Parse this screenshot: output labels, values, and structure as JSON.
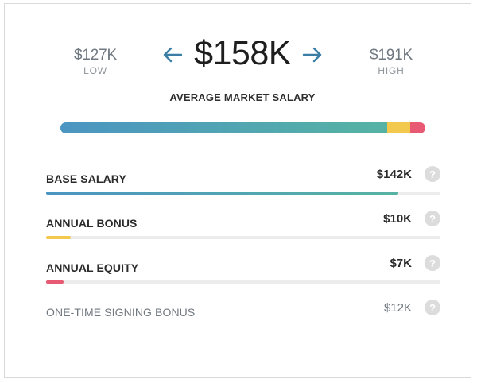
{
  "salary": {
    "low": {
      "amount": "$127K",
      "label": "LOW"
    },
    "high": {
      "amount": "$191K",
      "label": "HIGH"
    },
    "average": {
      "amount": "$158K",
      "label": "AVERAGE MARKET SALARY"
    }
  },
  "icons": {
    "prev": "arrow-left-icon",
    "next": "arrow-right-icon",
    "help": "question-mark-icon"
  },
  "colors": {
    "accent": "#3a7ea6",
    "base_start": "#4b95c2",
    "base_end": "#56b3a3",
    "bonus": "#f2c94c",
    "equity": "#e85a73"
  },
  "total_bar": {
    "base_fraction": 0.896,
    "bonus_fraction": 0.063,
    "equity_fraction": 0.041
  },
  "components": [
    {
      "name": "BASE SALARY",
      "value": "$142K",
      "fill_fraction": 0.894,
      "color": "base"
    },
    {
      "name": "ANNUAL BONUS",
      "value": "$10K",
      "fill_fraction": 0.063,
      "color": "#f2c94c"
    },
    {
      "name": "ANNUAL EQUITY",
      "value": "$7K",
      "fill_fraction": 0.044,
      "color": "#e85a73"
    },
    {
      "name": "ONE-TIME SIGNING BONUS",
      "value": "$12K",
      "fill_fraction": 0,
      "color": "none"
    }
  ],
  "help_glyph": "?"
}
